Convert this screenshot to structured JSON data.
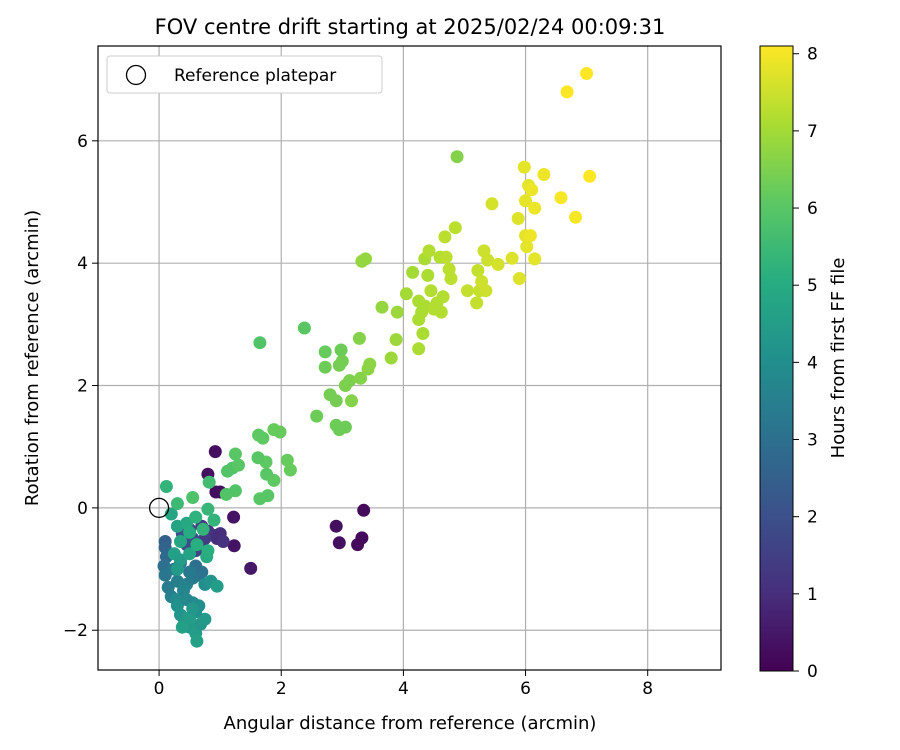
{
  "chart_data": {
    "type": "scatter",
    "title": "FOV centre drift starting at 2025/02/24 00:09:31",
    "xlabel": "Angular distance from reference (arcmin)",
    "ylabel": "Rotation from reference (arcmin)",
    "xlim": [
      -1.0,
      9.2
    ],
    "ylim": [
      -2.65,
      7.55
    ],
    "xticks": [
      0,
      2,
      4,
      6,
      8
    ],
    "xtick_labels": [
      "0",
      "2",
      "4",
      "6",
      "8"
    ],
    "yticks": [
      -2,
      0,
      2,
      4,
      6
    ],
    "ytick_labels": [
      "−2",
      "0",
      "2",
      "4",
      "6"
    ],
    "grid": true,
    "legend": {
      "position": "top-left",
      "entries": [
        "Reference platepar"
      ]
    },
    "reference_point": {
      "x": 0,
      "y": 0
    },
    "colorbar": {
      "label": "Hours from first FF file",
      "min": 0,
      "max": 8.1,
      "ticks": [
        0,
        1,
        2,
        3,
        4,
        5,
        6,
        7,
        8
      ],
      "tick_labels": [
        "0",
        "1",
        "2",
        "3",
        "4",
        "5",
        "6",
        "7",
        "8"
      ],
      "colormap": "viridis"
    },
    "points": [
      [
        0.92,
        0.92,
        0.3
      ],
      [
        0.8,
        0.55,
        0.3
      ],
      [
        0.93,
        0.26,
        0.3
      ],
      [
        1.0,
        0.26,
        0.3
      ],
      [
        1.22,
        -0.15,
        0.4
      ],
      [
        1.23,
        -0.62,
        0.4
      ],
      [
        1.5,
        -0.99,
        0.5
      ],
      [
        2.9,
        -0.3,
        0.3
      ],
      [
        2.95,
        -0.57,
        0.3
      ],
      [
        3.25,
        -0.6,
        0.2
      ],
      [
        3.32,
        -0.49,
        0.2
      ],
      [
        3.35,
        -0.04,
        0.2
      ],
      [
        0.7,
        -0.3,
        1.3
      ],
      [
        0.8,
        -0.38,
        1.2
      ],
      [
        0.9,
        -0.45,
        1.1
      ],
      [
        1.0,
        -0.42,
        1.0
      ],
      [
        0.95,
        -0.5,
        1.0
      ],
      [
        1.05,
        -0.55,
        1.1
      ],
      [
        0.75,
        -0.5,
        1.4
      ],
      [
        0.7,
        -0.62,
        1.5
      ],
      [
        0.6,
        -0.7,
        1.6
      ],
      [
        0.5,
        -0.35,
        1.6
      ],
      [
        0.45,
        -0.6,
        1.8
      ],
      [
        0.38,
        -0.42,
        2.0
      ],
      [
        0.55,
        -0.5,
        1.9
      ],
      [
        0.1,
        -0.55,
        2.5
      ],
      [
        0.1,
        -0.65,
        2.6
      ],
      [
        0.12,
        -0.8,
        2.8
      ],
      [
        0.08,
        -0.95,
        3.0
      ],
      [
        0.1,
        -1.1,
        3.2
      ],
      [
        0.15,
        -1.3,
        3.4
      ],
      [
        0.2,
        -1.45,
        3.5
      ],
      [
        0.25,
        -1.0,
        3.3
      ],
      [
        0.3,
        -1.2,
        3.5
      ],
      [
        0.35,
        -0.9,
        3.2
      ],
      [
        0.45,
        -1.25,
        3.6
      ],
      [
        0.55,
        -1.15,
        3.4
      ],
      [
        0.65,
        -1.1,
        3.2
      ],
      [
        0.7,
        -1.05,
        3.1
      ],
      [
        0.6,
        -0.95,
        3.0
      ],
      [
        0.5,
        -1.05,
        3.3
      ],
      [
        0.4,
        -1.35,
        3.7
      ],
      [
        0.28,
        -1.5,
        3.9
      ],
      [
        0.3,
        -1.6,
        4.1
      ],
      [
        0.35,
        -1.75,
        4.2
      ],
      [
        0.42,
        -1.85,
        4.3
      ],
      [
        0.5,
        -1.95,
        4.4
      ],
      [
        0.6,
        -2.05,
        4.5
      ],
      [
        0.62,
        -2.18,
        4.6
      ],
      [
        0.68,
        -1.9,
        4.3
      ],
      [
        0.75,
        -1.82,
        4.4
      ],
      [
        0.6,
        -1.7,
        4.1
      ],
      [
        0.65,
        -1.6,
        4.0
      ],
      [
        0.55,
        -1.55,
        3.9
      ],
      [
        0.45,
        -1.5,
        3.8
      ],
      [
        0.38,
        -1.95,
        4.6
      ],
      [
        0.5,
        -1.8,
        4.5
      ],
      [
        0.55,
        -1.65,
        4.3
      ],
      [
        0.75,
        -1.25,
        4.0
      ],
      [
        0.85,
        -1.2,
        4.2
      ],
      [
        0.95,
        -1.28,
        4.5
      ],
      [
        0.2,
        -0.1,
        4.8
      ],
      [
        0.3,
        -0.3,
        4.7
      ],
      [
        0.45,
        -0.25,
        4.9
      ],
      [
        0.5,
        -0.4,
        5.0
      ],
      [
        0.35,
        -0.55,
        4.8
      ],
      [
        0.25,
        -0.75,
        4.6
      ],
      [
        0.35,
        -0.85,
        4.5
      ],
      [
        0.5,
        -0.75,
        4.7
      ],
      [
        0.3,
        -1.0,
        4.4
      ],
      [
        0.6,
        -0.15,
        5.2
      ],
      [
        0.72,
        -0.35,
        5.3
      ],
      [
        0.78,
        -0.8,
        5.0
      ],
      [
        0.8,
        -0.7,
        5.1
      ],
      [
        0.62,
        -0.6,
        5.1
      ],
      [
        0.9,
        -0.2,
        5.3
      ],
      [
        0.8,
        -0.02,
        5.4
      ],
      [
        0.12,
        0.35,
        5.3
      ],
      [
        0.3,
        0.07,
        5.5
      ],
      [
        0.55,
        0.17,
        5.8
      ],
      [
        0.82,
        0.42,
        5.6
      ],
      [
        1.12,
        0.6,
        5.9
      ],
      [
        1.2,
        0.65,
        5.9
      ],
      [
        1.25,
        0.88,
        6.0
      ],
      [
        1.3,
        0.7,
        6.0
      ],
      [
        1.1,
        0.22,
        5.9
      ],
      [
        1.25,
        0.28,
        5.9
      ],
      [
        1.63,
        1.19,
        6.1
      ],
      [
        1.7,
        1.14,
        6.1
      ],
      [
        1.88,
        1.28,
        6.2
      ],
      [
        1.98,
        1.24,
        6.2
      ],
      [
        1.75,
        0.75,
        6.1
      ],
      [
        1.62,
        0.82,
        6.0
      ],
      [
        1.76,
        0.55,
        6.0
      ],
      [
        1.88,
        0.45,
        6.1
      ],
      [
        1.65,
        0.15,
        6.0
      ],
      [
        1.78,
        0.2,
        6.0
      ],
      [
        2.1,
        0.78,
        6.2
      ],
      [
        2.15,
        0.62,
        6.2
      ],
      [
        1.65,
        2.7,
        5.9
      ],
      [
        2.38,
        2.94,
        6.0
      ],
      [
        2.58,
        1.5,
        6.3
      ],
      [
        2.72,
        2.55,
        6.2
      ],
      [
        2.72,
        2.3,
        6.3
      ],
      [
        2.8,
        1.85,
        6.4
      ],
      [
        2.9,
        1.75,
        6.4
      ],
      [
        2.95,
        2.33,
        6.4
      ],
      [
        3.0,
        2.4,
        6.4
      ],
      [
        2.98,
        2.58,
        6.3
      ],
      [
        3.05,
        2.0,
        6.5
      ],
      [
        3.12,
        2.08,
        6.5
      ],
      [
        3.15,
        1.75,
        6.6
      ],
      [
        2.9,
        1.35,
        6.3
      ],
      [
        2.95,
        1.28,
        6.3
      ],
      [
        3.05,
        1.32,
        6.3
      ],
      [
        3.28,
        2.77,
        6.6
      ],
      [
        3.3,
        2.12,
        6.6
      ],
      [
        3.42,
        2.27,
        6.7
      ],
      [
        3.45,
        2.35,
        6.7
      ],
      [
        3.32,
        4.03,
        6.8
      ],
      [
        3.38,
        4.07,
        6.8
      ],
      [
        3.65,
        3.28,
        6.8
      ],
      [
        3.8,
        2.45,
        6.9
      ],
      [
        3.88,
        2.75,
        6.9
      ],
      [
        3.9,
        3.2,
        6.9
      ],
      [
        4.05,
        3.5,
        7.0
      ],
      [
        4.15,
        3.85,
        7.0
      ],
      [
        4.25,
        3.38,
        7.1
      ],
      [
        4.25,
        3.08,
        7.1
      ],
      [
        4.25,
        2.6,
        7.1
      ],
      [
        4.3,
        3.2,
        7.1
      ],
      [
        4.32,
        2.85,
        7.1
      ],
      [
        4.35,
        3.3,
        7.1
      ],
      [
        4.35,
        4.07,
        7.1
      ],
      [
        4.4,
        3.8,
        7.1
      ],
      [
        4.42,
        4.2,
        7.2
      ],
      [
        4.45,
        3.55,
        7.2
      ],
      [
        4.5,
        3.25,
        7.2
      ],
      [
        4.55,
        3.35,
        7.2
      ],
      [
        4.6,
        4.1,
        7.2
      ],
      [
        4.62,
        3.2,
        7.2
      ],
      [
        4.65,
        3.45,
        7.2
      ],
      [
        4.68,
        4.43,
        7.3
      ],
      [
        4.7,
        4.1,
        7.3
      ],
      [
        4.75,
        3.9,
        7.3
      ],
      [
        4.78,
        3.75,
        7.3
      ],
      [
        4.85,
        4.58,
        7.3
      ],
      [
        4.88,
        5.74,
        6.6
      ],
      [
        5.05,
        3.55,
        7.4
      ],
      [
        5.2,
        3.35,
        7.4
      ],
      [
        5.22,
        3.88,
        7.4
      ],
      [
        5.25,
        3.55,
        7.4
      ],
      [
        5.28,
        3.7,
        7.5
      ],
      [
        5.32,
        4.2,
        7.5
      ],
      [
        5.35,
        3.55,
        7.5
      ],
      [
        5.38,
        4.05,
        7.5
      ],
      [
        5.45,
        4.97,
        7.6
      ],
      [
        5.55,
        3.98,
        7.6
      ],
      [
        5.78,
        4.08,
        7.7
      ],
      [
        5.88,
        4.73,
        7.7
      ],
      [
        5.9,
        3.75,
        7.7
      ],
      [
        5.98,
        5.57,
        7.8
      ],
      [
        6.0,
        5.02,
        7.8
      ],
      [
        6.0,
        4.45,
        7.8
      ],
      [
        6.02,
        4.27,
        7.8
      ],
      [
        6.05,
        5.27,
        7.8
      ],
      [
        6.08,
        4.45,
        7.9
      ],
      [
        6.1,
        5.2,
        7.9
      ],
      [
        6.15,
        4.9,
        7.9
      ],
      [
        6.15,
        4.07,
        7.8
      ],
      [
        6.3,
        5.45,
        7.9
      ],
      [
        6.58,
        5.07,
        8.0
      ],
      [
        6.68,
        6.8,
        8.1
      ],
      [
        6.82,
        4.75,
        8.0
      ],
      [
        7.0,
        7.1,
        8.1
      ],
      [
        7.05,
        5.42,
        8.1
      ]
    ]
  }
}
